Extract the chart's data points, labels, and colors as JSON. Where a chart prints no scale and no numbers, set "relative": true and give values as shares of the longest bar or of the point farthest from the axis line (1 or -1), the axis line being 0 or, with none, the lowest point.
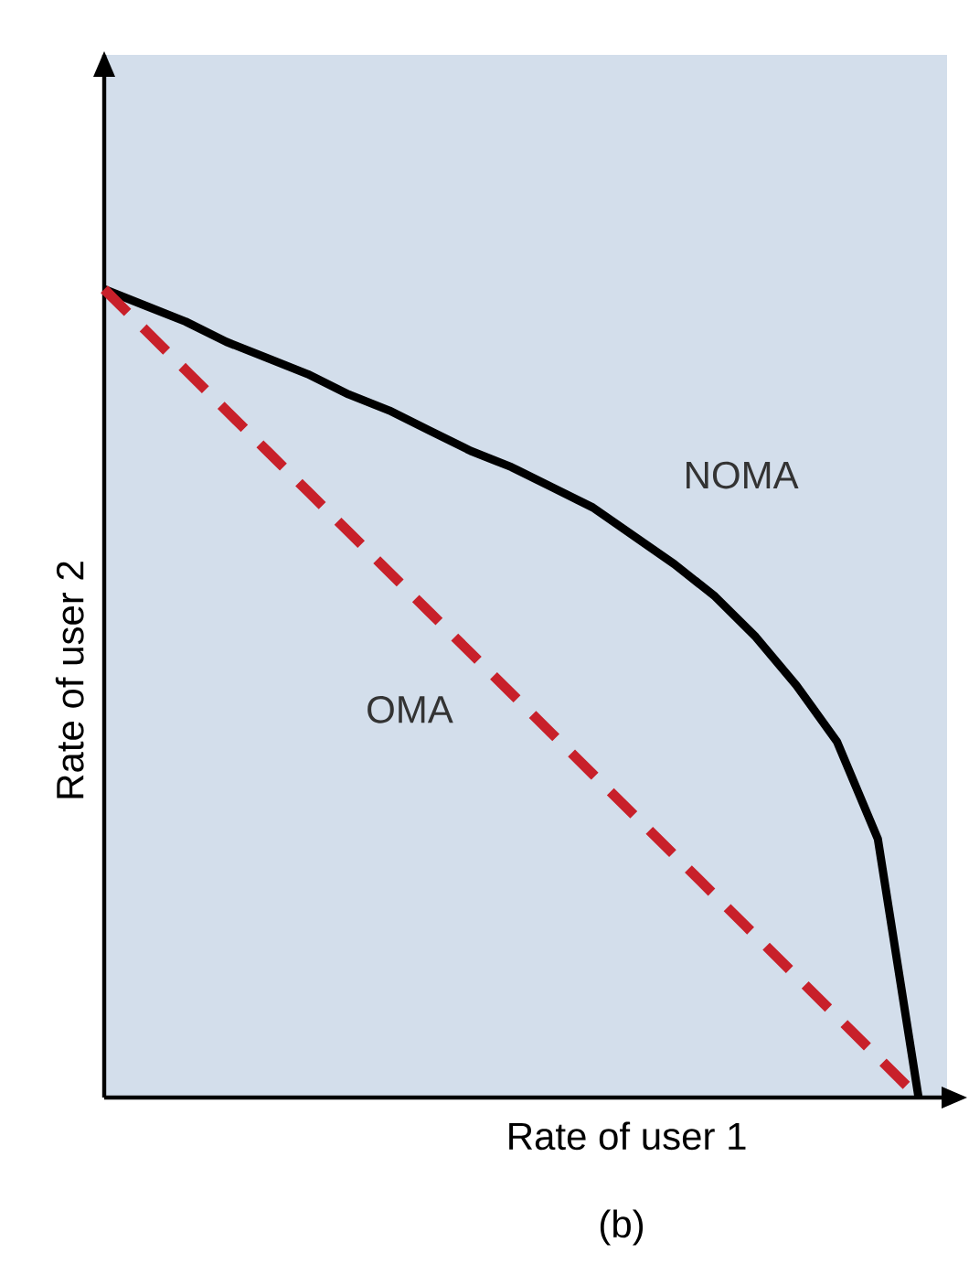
{
  "chart_data": {
    "type": "line",
    "relative": true,
    "xlabel": "Rate of user 1",
    "ylabel": "Rate of user 2",
    "annotations": [
      "(b)"
    ],
    "tick_labels": false,
    "legend": false,
    "categories": [
      null,
      null,
      null,
      null,
      null,
      null,
      null,
      null,
      null,
      null,
      null,
      null,
      null,
      null,
      null,
      null,
      null,
      null,
      null,
      null,
      null
    ],
    "series": [
      {
        "name": "NOMA",
        "color": "#000000",
        "line_style": "solid",
        "values": [
          1,
          0.98,
          0.96,
          0.935,
          0.915,
          0.895,
          0.87,
          0.85,
          0.825,
          0.8,
          0.78,
          0.755,
          0.73,
          0.695,
          0.66,
          0.62,
          0.57,
          0.51,
          0.44,
          0.32,
          0
        ]
      },
      {
        "name": "OMA",
        "color": "#c8202a",
        "line_style": "dashed",
        "values": [
          1,
          0.95,
          0.9,
          0.85,
          0.8,
          0.75,
          0.7,
          0.65,
          0.6,
          0.55,
          0.5,
          0.45,
          0.4,
          0.35,
          0.3,
          0.25,
          0.2,
          0.15,
          0.1,
          0.05,
          0
        ]
      }
    ]
  }
}
